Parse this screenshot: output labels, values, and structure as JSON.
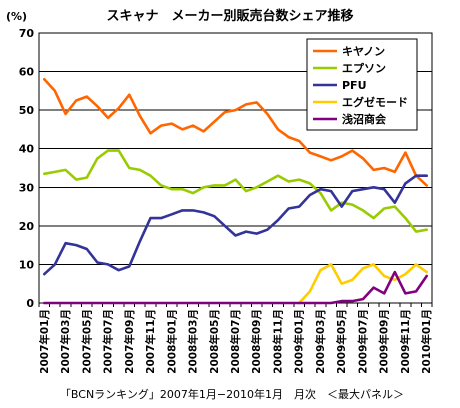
{
  "chart_data": {
    "type": "line",
    "title": "スキャナ　メーカー別販売台数シェア推移",
    "ylabel": "(%)",
    "xlabel": "",
    "ylim": [
      0,
      70
    ],
    "yticks": [
      0,
      10,
      20,
      30,
      40,
      50,
      60,
      70
    ],
    "grid": true,
    "legend_position": "top-right",
    "source": "「BCNランキング」2007年1月−2010年1月　月次　＜最大パネル＞",
    "x": [
      "2007年01月",
      "2007年02月",
      "2007年03月",
      "2007年04月",
      "2007年05月",
      "2007年06月",
      "2007年07月",
      "2007年08月",
      "2007年09月",
      "2007年10月",
      "2007年11月",
      "2007年12月",
      "2008年01月",
      "2008年02月",
      "2008年03月",
      "2008年04月",
      "2008年05月",
      "2008年06月",
      "2008年07月",
      "2008年08月",
      "2008年09月",
      "2008年10月",
      "2008年11月",
      "2008年12月",
      "2009年01月",
      "2009年02月",
      "2009年03月",
      "2009年04月",
      "2009年05月",
      "2009年06月",
      "2009年07月",
      "2009年08月",
      "2009年09月",
      "2009年10月",
      "2009年11月",
      "2009年12月",
      "2010年01月"
    ],
    "tick_labels": [
      "2007年01月",
      "2007年03月",
      "2007年05月",
      "2007年07月",
      "2007年09月",
      "2007年11月",
      "2008年01月",
      "2008年03月",
      "2008年05月",
      "2008年07月",
      "2008年09月",
      "2008年11月",
      "2009年01月",
      "2009年03月",
      "2009年05月",
      "2009年07月",
      "2009年09月",
      "2009年11月",
      "2010年01月"
    ],
    "series": [
      {
        "name": "キヤノン",
        "color": "#ff6600",
        "values": [
          58,
          55,
          49,
          52.5,
          53.5,
          51,
          48,
          50.5,
          54,
          48.5,
          44,
          46,
          46.5,
          45,
          46,
          44.5,
          47,
          49.5,
          50,
          51.5,
          52,
          49,
          45,
          43,
          42,
          39,
          38,
          37,
          38,
          39.5,
          37.5,
          34.5,
          35,
          34,
          39,
          33,
          30.5
        ]
      },
      {
        "name": "エプソン",
        "color": "#99cc00",
        "values": [
          33.5,
          34,
          34.5,
          32,
          32.5,
          37.5,
          39.5,
          39.5,
          35,
          34.5,
          33,
          30.5,
          29.5,
          29.5,
          28.5,
          30,
          30.5,
          30.5,
          32,
          29,
          30,
          31.5,
          33,
          31.5,
          32,
          31,
          28.5,
          24,
          26,
          25.5,
          24,
          22,
          24.5,
          25,
          22,
          18.5,
          19
        ]
      },
      {
        "name": "PFU",
        "color": "#333399",
        "values": [
          7.5,
          10,
          15.5,
          15,
          14,
          10.5,
          10,
          8.5,
          9.5,
          16,
          22,
          22,
          23,
          24,
          24,
          23.5,
          22.5,
          20,
          17.5,
          18.5,
          18,
          19,
          21.5,
          24.5,
          25,
          28,
          29.5,
          29,
          25,
          29,
          29.5,
          30,
          29.5,
          26,
          31,
          33,
          33
        ]
      },
      {
        "name": "エグゼモード",
        "color": "#ffcc00",
        "values": [
          null,
          null,
          null,
          null,
          null,
          null,
          null,
          null,
          null,
          null,
          null,
          null,
          null,
          null,
          null,
          null,
          null,
          null,
          null,
          null,
          null,
          null,
          null,
          null,
          0,
          3,
          8.5,
          10,
          5,
          6,
          9,
          10,
          7,
          6,
          7.5,
          10,
          8
        ]
      },
      {
        "name": "浅沼商会",
        "color": "#800080",
        "values": [
          0,
          0,
          0,
          0,
          0,
          0,
          0,
          0,
          0,
          0,
          0,
          0,
          0,
          0,
          0,
          0,
          0,
          0,
          0,
          0,
          0,
          0,
          0,
          0,
          0,
          0,
          0,
          0,
          0.5,
          0.5,
          1,
          4,
          2.5,
          8,
          2.5,
          3,
          7
        ]
      }
    ]
  }
}
